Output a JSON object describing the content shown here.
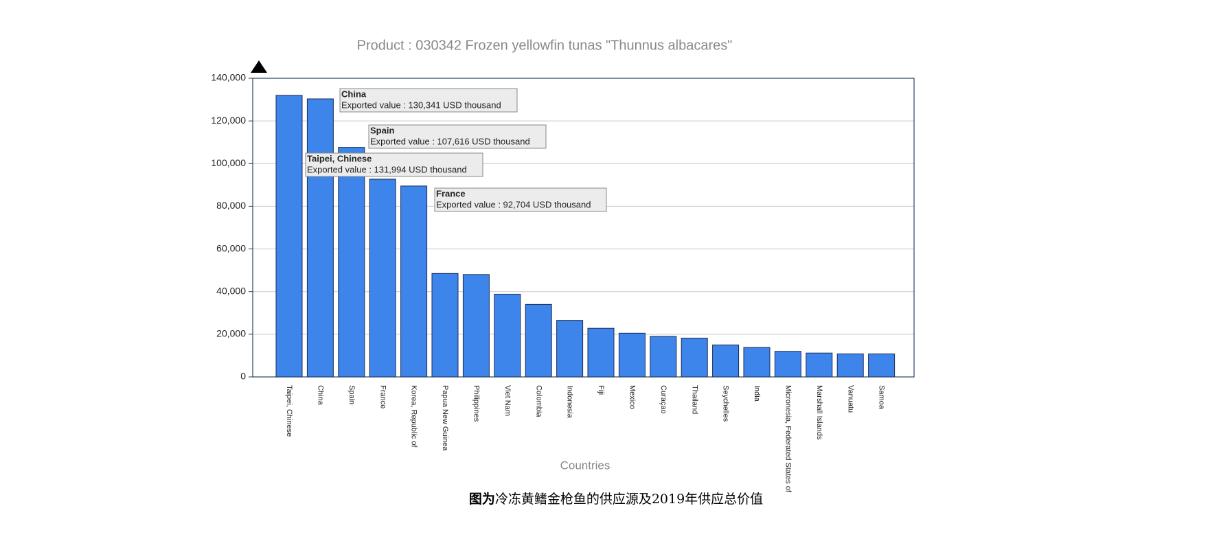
{
  "chart_data": {
    "type": "bar",
    "title": "Product : 030342 Frozen yellowfin tunas \"Thunnus albacares\"",
    "x_label": "Countries",
    "categories": [
      "Taipei, Chinese",
      "China",
      "Spain",
      "France",
      "Korea, Republic of",
      "Papua New Guinea",
      "Philippines",
      "Viet Nam",
      "Colombia",
      "Indonesia",
      "Fiji",
      "Mexico",
      "Curaçao",
      "Thailand",
      "Seychelles",
      "India",
      "Micronesia, Federated States of",
      "Marshall Islands",
      "Vanuatu",
      "Samoa"
    ],
    "values": [
      131994,
      130341,
      107616,
      92704,
      89500,
      48500,
      48000,
      38800,
      34000,
      26500,
      22800,
      20500,
      19000,
      18200,
      15000,
      13800,
      12000,
      11200,
      10800,
      10800
    ],
    "color": "#3d85ea",
    "ylim": [
      0,
      140000
    ],
    "yticks": [
      0,
      {
        "value": 20000,
        "label": "20,000"
      },
      {
        "value": 40000,
        "label": "40,000"
      },
      {
        "value": 60000,
        "label": "60,000"
      },
      {
        "value": 80000,
        "label": "80,000"
      },
      {
        "value": 100000,
        "label": "100,000"
      },
      {
        "value": 120000,
        "label": "120,000"
      },
      {
        "value": 140000,
        "label": "140,000"
      }
    ],
    "grid": true,
    "tooltips": [
      {
        "title": "China",
        "text": "Exported value : 130,341 USD thousand"
      },
      {
        "title": "Spain",
        "text": "Exported value : 107,616 USD thousand"
      },
      {
        "title": "Taipei, Chinese",
        "text": "Exported value : 131,994 USD thousand"
      },
      {
        "title": "France",
        "text": "Exported value : 92,704 USD thousand"
      }
    ]
  },
  "caption": {
    "bold": "图为",
    "text": "冷冻黄鳍金枪鱼的供应源及2019年供应总价值"
  }
}
